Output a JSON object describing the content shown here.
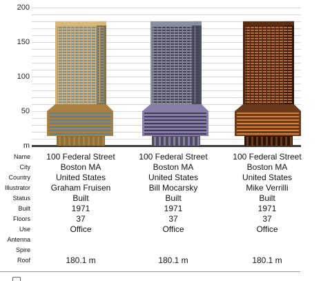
{
  "chart": {
    "unit_symbol": "m",
    "ticks": [
      {
        "value": 200,
        "label": "200"
      },
      {
        "value": 150,
        "label": "150"
      },
      {
        "value": 100,
        "label": "100"
      },
      {
        "value": 50,
        "label": "50"
      }
    ],
    "grid_step": 10,
    "max_value": 200,
    "buildings": [
      {
        "height_m": 180.1,
        "colors": {
          "top": "#d9b977",
          "body": "#cfb178",
          "window": "#6f8ea8",
          "shade": "#8e6f3a",
          "base": "#a88040",
          "base_window": "#5d7f99"
        }
      },
      {
        "height_m": 180.1,
        "colors": {
          "top": "#8a8f9c",
          "body": "#8b8c99",
          "window": "#3e4252",
          "shade": "#4d4f5b",
          "base": "#8a7ca8",
          "base_window": "#403a55"
        }
      },
      {
        "height_m": 180.1,
        "colors": {
          "top": "#5a2c10",
          "body": "#4a2410",
          "window": "#c2712c",
          "shade": "#2a1408",
          "base": "#6a3a1a",
          "base_window": "#d98235"
        }
      }
    ]
  },
  "info": {
    "labels": {
      "name": "Name",
      "city": "City",
      "country": "Country",
      "illustrator": "Illustrator",
      "status": "Status",
      "built": "Built",
      "floors": "Floors",
      "use": "Use",
      "antenna": "Antenna",
      "spire": "Spire",
      "roof": "Roof"
    },
    "columns": [
      {
        "name": "100 Federal Street",
        "city": "Boston MA",
        "country": "United States",
        "illustrator": "Graham Fruisen",
        "status": "Built",
        "built": "1971",
        "floors": "37",
        "use": "Office",
        "antenna": "",
        "spire": "",
        "roof": "180.1 m"
      },
      {
        "name": "100 Federal Street",
        "city": "Boston MA",
        "country": "United States",
        "illustrator": "Bill Mocarsky",
        "status": "Built",
        "built": "1971",
        "floors": "37",
        "use": "Office",
        "antenna": "",
        "spire": "",
        "roof": "180.1 m"
      },
      {
        "name": "100 Federal Street",
        "city": "Boston MA",
        "country": "United States",
        "illustrator": "Mike Verrilli",
        "status": "Built",
        "built": "1971",
        "floors": "37",
        "use": "Office",
        "antenna": "",
        "spire": "",
        "roof": "180.1 m"
      }
    ]
  }
}
